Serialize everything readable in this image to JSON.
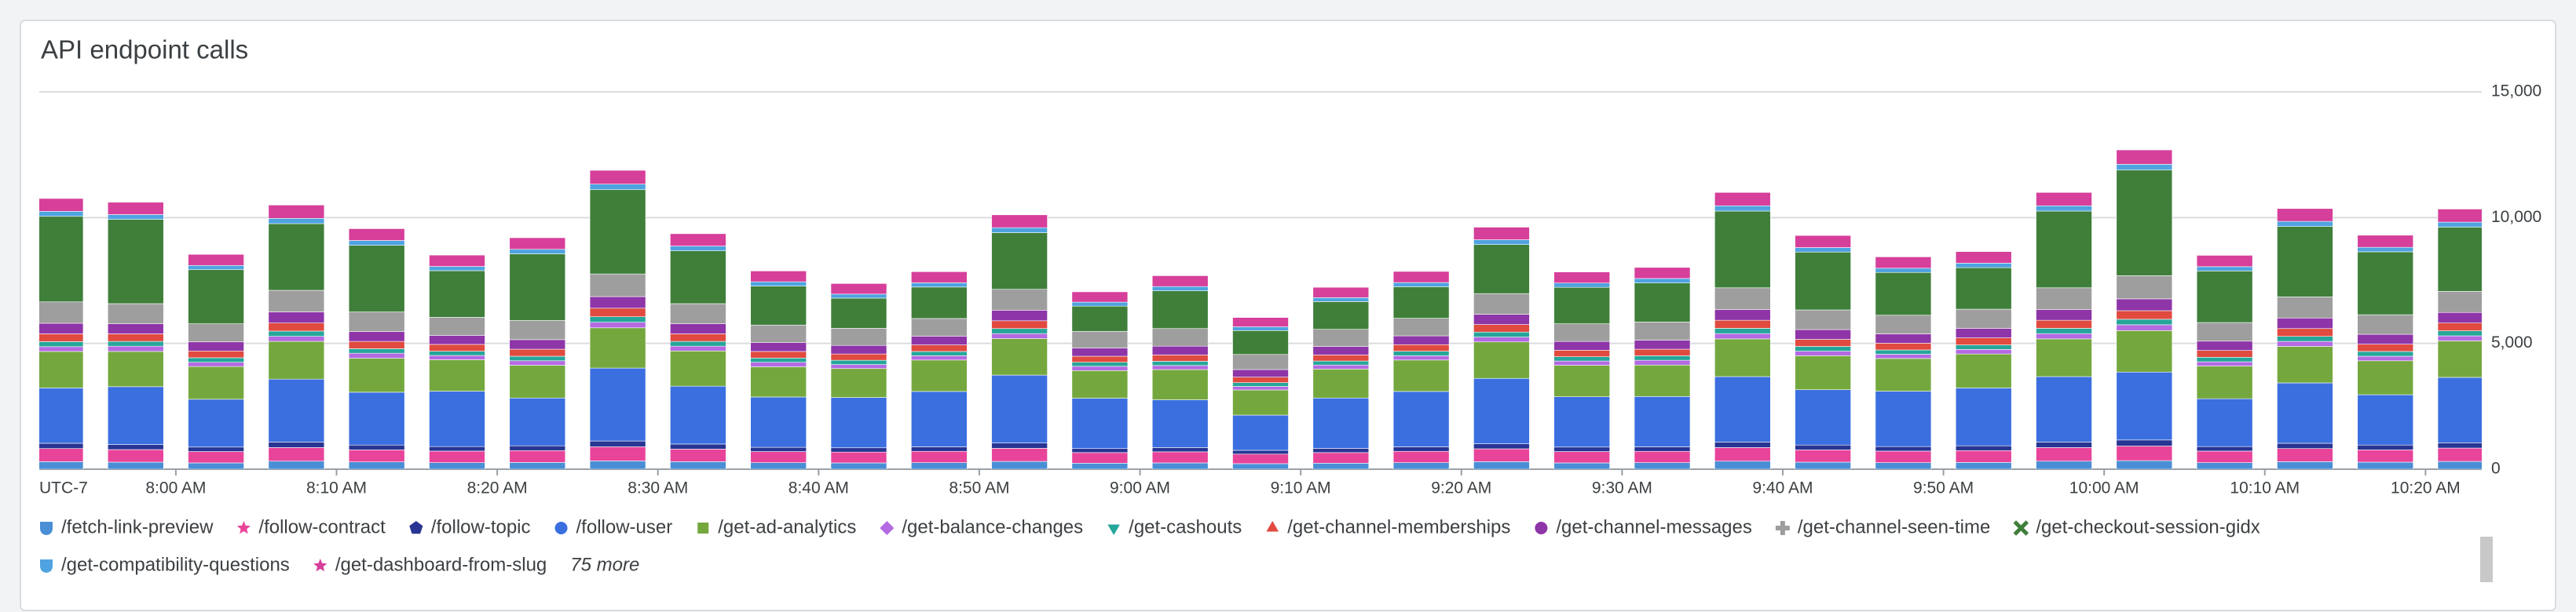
{
  "chart_data": {
    "type": "stacked-bar",
    "title": "API endpoint calls",
    "timezone": "UTC-7",
    "x": [
      472.5,
      477.5,
      482.5,
      487.5,
      492.5,
      497.5,
      502.5,
      507.5,
      512.5,
      517.5,
      522.5,
      527.5,
      532.5,
      537.5,
      542.5,
      547.5,
      552.5,
      557.5,
      562.5,
      567.5,
      572.5,
      577.5,
      582.5,
      587.5,
      592.5,
      597.5,
      602.5,
      607.5,
      612.5,
      617.5,
      622.5
    ],
    "xlim": [
      471.5,
      623.5
    ],
    "xticks": [
      {
        "value": 480,
        "label": "8:00 AM"
      },
      {
        "value": 490,
        "label": "8:10 AM"
      },
      {
        "value": 500,
        "label": "8:20 AM"
      },
      {
        "value": 510,
        "label": "8:30 AM"
      },
      {
        "value": 520,
        "label": "8:40 AM"
      },
      {
        "value": 530,
        "label": "8:50 AM"
      },
      {
        "value": 540,
        "label": "9:00 AM"
      },
      {
        "value": 550,
        "label": "9:10 AM"
      },
      {
        "value": 560,
        "label": "9:20 AM"
      },
      {
        "value": 570,
        "label": "9:30 AM"
      },
      {
        "value": 580,
        "label": "9:40 AM"
      },
      {
        "value": 590,
        "label": "9:50 AM"
      },
      {
        "value": 600,
        "label": "10:00 AM"
      },
      {
        "value": 610,
        "label": "10:10 AM"
      },
      {
        "value": 620,
        "label": "10:20 AM"
      }
    ],
    "ylim": [
      0,
      15000
    ],
    "yticks": [
      0,
      {
        "value": 5000,
        "label": "5,000"
      },
      {
        "value": 10000,
        "label": "10,000"
      },
      {
        "value": 15000,
        "label": "15,000"
      }
    ],
    "grid": true,
    "legend_more": "75 more",
    "series": [
      {
        "name": "/fetch-link-preview",
        "color": "#4a8fd6",
        "marker": "shield",
        "values": [
          300,
          280,
          250,
          320,
          290,
          260,
          270,
          330,
          300,
          260,
          250,
          260,
          310,
          240,
          250,
          220,
          240,
          260,
          300,
          250,
          260,
          320,
          280,
          260,
          270,
          320,
          340,
          260,
          300,
          280,
          310
        ]
      },
      {
        "name": "/follow-contract",
        "color": "#e8449a",
        "marker": "star",
        "values": [
          520,
          500,
          450,
          540,
          480,
          460,
          470,
          560,
          500,
          440,
          430,
          450,
          520,
          420,
          440,
          380,
          420,
          450,
          510,
          450,
          450,
          540,
          490,
          460,
          470,
          540,
          580,
          460,
          520,
          490,
          530
        ]
      },
      {
        "name": "/follow-topic",
        "color": "#283593",
        "marker": "pentagon",
        "values": [
          210,
          200,
          180,
          220,
          190,
          180,
          190,
          230,
          200,
          170,
          170,
          180,
          210,
          160,
          170,
          150,
          170,
          180,
          200,
          180,
          180,
          220,
          190,
          180,
          190,
          220,
          240,
          180,
          210,
          190,
          210
        ]
      },
      {
        "name": "/follow-user",
        "color": "#3b6fe0",
        "marker": "circle",
        "values": [
          2200,
          2300,
          1900,
          2500,
          2100,
          2200,
          1900,
          2900,
          2300,
          2000,
          2000,
          2200,
          2700,
          2000,
          1900,
          1400,
          2000,
          2200,
          2600,
          2000,
          2000,
          2600,
          2200,
          2200,
          2300,
          2600,
          2700,
          1900,
          2400,
          2000,
          2600
        ]
      },
      {
        "name": "/get-ad-analytics",
        "color": "#74a83e",
        "marker": "square",
        "values": [
          1450,
          1400,
          1300,
          1500,
          1350,
          1250,
          1300,
          1600,
          1400,
          1200,
          1150,
          1250,
          1450,
          1100,
          1200,
          1000,
          1150,
          1250,
          1450,
          1250,
          1250,
          1500,
          1350,
          1300,
          1350,
          1500,
          1650,
          1300,
          1450,
          1350,
          1450
        ]
      },
      {
        "name": "/get-balance-changes",
        "color": "#b36ae2",
        "marker": "diamond",
        "values": [
          190,
          210,
          170,
          200,
          200,
          170,
          180,
          220,
          190,
          180,
          160,
          170,
          200,
          170,
          160,
          140,
          160,
          170,
          190,
          170,
          190,
          210,
          180,
          170,
          180,
          210,
          230,
          170,
          200,
          180,
          200
        ]
      },
      {
        "name": "/get-cashouts",
        "color": "#26a69a",
        "marker": "triangle-down",
        "values": [
          200,
          190,
          180,
          210,
          180,
          170,
          180,
          220,
          190,
          170,
          170,
          170,
          200,
          160,
          170,
          150,
          160,
          180,
          200,
          170,
          180,
          210,
          190,
          170,
          180,
          210,
          220,
          180,
          200,
          190,
          200
        ]
      },
      {
        "name": "/get-channel-memberships",
        "color": "#e04a3f",
        "marker": "triangle",
        "values": [
          310,
          300,
          270,
          320,
          290,
          270,
          280,
          340,
          300,
          260,
          250,
          260,
          310,
          240,
          250,
          220,
          240,
          260,
          300,
          260,
          260,
          320,
          280,
          270,
          280,
          320,
          340,
          270,
          310,
          290,
          310
        ]
      },
      {
        "name": "/get-channel-messages",
        "color": "#8e35a8",
        "marker": "circle",
        "values": [
          420,
          400,
          360,
          440,
          390,
          360,
          380,
          460,
          400,
          350,
          340,
          350,
          420,
          330,
          350,
          300,
          340,
          350,
          410,
          350,
          360,
          430,
          390,
          370,
          380,
          430,
          470,
          370,
          420,
          390,
          420
        ]
      },
      {
        "name": "/get-channel-seen-time",
        "color": "#9e9e9e",
        "marker": "cross",
        "values": [
          850,
          800,
          720,
          860,
          780,
          720,
          760,
          900,
          800,
          700,
          680,
          700,
          830,
          660,
          700,
          600,
          680,
          700,
          820,
          700,
          720,
          860,
          780,
          740,
          760,
          860,
          920,
          740,
          840,
          780,
          840
        ]
      },
      {
        "name": "/get-checkout-session-gidx",
        "color": "#3f7f3a",
        "marker": "x",
        "values": [
          3400,
          3350,
          2150,
          2650,
          2650,
          1850,
          2650,
          3350,
          2100,
          1550,
          1200,
          1250,
          2250,
          1000,
          1500,
          950,
          1100,
          1250,
          1950,
          1450,
          1550,
          3050,
          2300,
          1700,
          1650,
          3050,
          4200,
          2050,
          2800,
          2500,
          2550
        ]
      },
      {
        "name": "/get-compatibility-questions",
        "color": "#4fa3e0",
        "marker": "shield",
        "values": [
          200,
          190,
          170,
          210,
          190,
          170,
          180,
          220,
          190,
          170,
          160,
          170,
          200,
          160,
          170,
          150,
          160,
          170,
          190,
          170,
          180,
          210,
          180,
          170,
          180,
          210,
          230,
          170,
          200,
          180,
          200
        ]
      },
      {
        "name": "/get-dashboard-from-slug",
        "color": "#d63f9a",
        "marker": "star",
        "values": [
          510,
          490,
          440,
          530,
          470,
          450,
          460,
          550,
          490,
          430,
          420,
          440,
          510,
          410,
          430,
          370,
          410,
          440,
          500,
          440,
          440,
          530,
          480,
          450,
          460,
          530,
          570,
          450,
          510,
          480,
          520
        ]
      }
    ]
  }
}
